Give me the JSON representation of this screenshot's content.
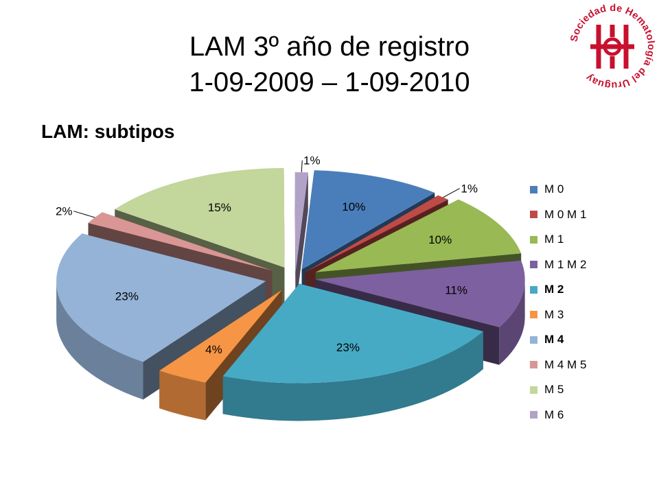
{
  "slide": {
    "title_line1": "LAM 3º año de registro",
    "title_line2": "1-09-2009 – 1-09-2010",
    "subtitle": "LAM: subtipos"
  },
  "logo": {
    "text": "Sociedad de Hematología del Uruguay",
    "color": "#c8102e"
  },
  "chart_data": {
    "type": "pie",
    "style": "3d-exploded",
    "categories": [
      "M 0",
      "M 0 M 1",
      "M 1",
      "M 1 M 2",
      "M 2",
      "M 3",
      "M 4",
      "M 4 M 5",
      "M 5",
      "M 6"
    ],
    "values": [
      10,
      1,
      10,
      11,
      23,
      4,
      23,
      2,
      15,
      1
    ],
    "labels": [
      "10%",
      "1%",
      "10%",
      "11%",
      "23%",
      "4%",
      "23%",
      "2%",
      "15%",
      "1%"
    ],
    "colors": [
      "#4a7ebb",
      "#be4b48",
      "#98b954",
      "#7d60a0",
      "#46aac5",
      "#f69545",
      "#95b3d7",
      "#d99694",
      "#c3d69b",
      "#b3a2c7"
    ],
    "bold_legend": [
      false,
      false,
      false,
      false,
      true,
      false,
      true,
      false,
      false,
      false
    ],
    "legend_position": "right"
  }
}
